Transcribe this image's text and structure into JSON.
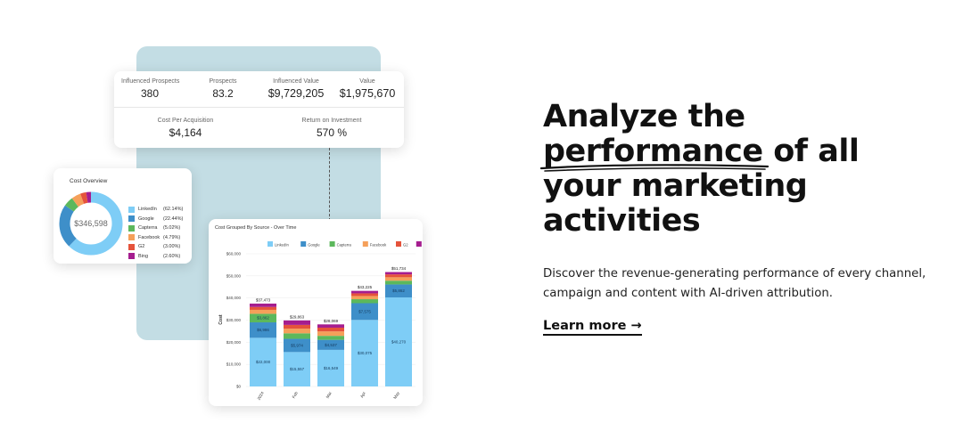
{
  "metrics": {
    "top": [
      {
        "label": "Influenced Prospects",
        "value": "380"
      },
      {
        "label": "Prospects",
        "value": "83.2"
      },
      {
        "label": "Influenced Value",
        "value": "$9,729,205"
      },
      {
        "label": "Value",
        "value": "$1,975,670"
      }
    ],
    "bottom": [
      {
        "label": "Cost Per Acquisition",
        "value": "$4,164"
      },
      {
        "label": "Return on Investment",
        "value": "570 %"
      }
    ]
  },
  "cost_overview": {
    "title": "Cost Overview",
    "total": "$346,598",
    "items": [
      {
        "name": "LinkedIn",
        "pct": "(62.14%)",
        "color": "#7ecdf6",
        "value": 62.14
      },
      {
        "name": "Google",
        "pct": "(22.44%)",
        "color": "#3e8fc9",
        "value": 22.44
      },
      {
        "name": "Capterra",
        "pct": "(5.02%)",
        "color": "#5cb85c",
        "value": 5.02
      },
      {
        "name": "Facebook",
        "pct": "(4.79%)",
        "color": "#f5a05a",
        "value": 4.79
      },
      {
        "name": "G2",
        "pct": "(3.00%)",
        "color": "#e5533b",
        "value": 3.0
      },
      {
        "name": "Bing",
        "pct": "(2.60%)",
        "color": "#a51d8f",
        "value": 2.6
      }
    ]
  },
  "chart_data": {
    "type": "bar",
    "stacked": true,
    "title": "Cost Grouped By Source - Over Time",
    "ylabel": "Cost",
    "ylim": [
      0,
      60000
    ],
    "yticks": [
      "$0",
      "$10,000",
      "$20,000",
      "$30,000",
      "$40,000",
      "$50,000",
      "$60,000"
    ],
    "categories": [
      "2024",
      "Feb",
      "Mar",
      "Apr",
      "May"
    ],
    "totals": [
      "$37,473",
      "$29,863",
      "$28,069",
      "$43,225",
      "$51,734"
    ],
    "series": [
      {
        "name": "LinkedIn",
        "color": "#7ecdf6",
        "values": [
          22000,
          15557,
          16549,
          30075,
          40270
        ],
        "labels": [
          "$22,000",
          "$15,557",
          "$16,549",
          "$30,075",
          "$40,270"
        ]
      },
      {
        "name": "Google",
        "color": "#3e8fc9",
        "values": [
          6986,
          5974,
          4537,
          7575,
          5862
        ],
        "labels": [
          "$6,986",
          "$5,974",
          "$4,537",
          "$7,575",
          "$5,862"
        ]
      },
      {
        "name": "Capterra",
        "color": "#5cb85c",
        "values": [
          3862,
          2500,
          1800,
          1800,
          1700
        ],
        "labels": [
          "$3,862",
          "",
          "",
          "",
          ""
        ]
      },
      {
        "name": "Facebook",
        "color": "#f5a05a",
        "values": [
          1800,
          2100,
          2000,
          1450,
          1550
        ],
        "labels": [
          "",
          "",
          "",
          "",
          ""
        ]
      },
      {
        "name": "G2",
        "color": "#e5533b",
        "values": [
          1300,
          1700,
          1700,
          1200,
          1300
        ],
        "labels": [
          "",
          "",
          "",
          "",
          ""
        ]
      },
      {
        "name": "Bing",
        "color": "#a51d8f",
        "values": [
          1525,
          2032,
          1483,
          1125,
          1052
        ],
        "labels": [
          "",
          "",
          "",
          "",
          ""
        ]
      }
    ]
  },
  "hero": {
    "headline": [
      "Analyze the",
      "performance of all",
      "your marketing",
      "activities"
    ],
    "description": "Discover the revenue-generating performance of every channel, campaign and content with AI-driven attribution.",
    "cta": "Learn more →"
  }
}
